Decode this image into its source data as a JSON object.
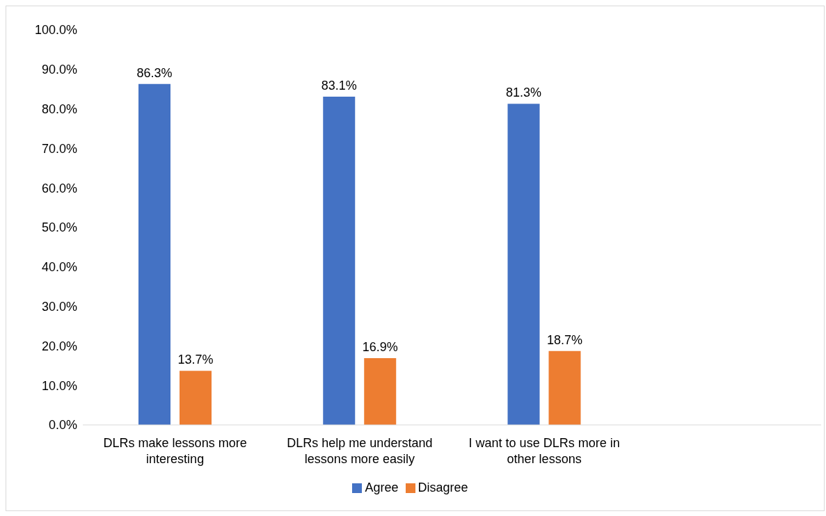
{
  "chart_data": {
    "type": "bar",
    "categories": [
      "DLRs make lessons more interesting",
      "DLRs help me understand lessons more easily",
      "I want to use DLRs more in other lessons",
      null
    ],
    "series": [
      {
        "name": "Agree",
        "color": "#4472c4",
        "values": [
          86.3,
          83.1,
          81.3,
          null
        ],
        "value_labels": [
          "86.3%",
          "83.1%",
          "81.3%",
          null
        ]
      },
      {
        "name": "Disagree",
        "color": "#ed7d31",
        "values": [
          13.7,
          16.9,
          18.7,
          null
        ],
        "value_labels": [
          "13.7%",
          "16.9%",
          "18.7%",
          null
        ]
      }
    ],
    "ylim": [
      0,
      100
    ],
    "yticks": [
      {
        "value": 0,
        "label": "0.0%"
      },
      {
        "value": 10,
        "label": "10.0%"
      },
      {
        "value": 20,
        "label": "20.0%"
      },
      {
        "value": 30,
        "label": "30.0%"
      },
      {
        "value": 40,
        "label": "40.0%"
      },
      {
        "value": 50,
        "label": "50.0%"
      },
      {
        "value": 60,
        "label": "60.0%"
      },
      {
        "value": 70,
        "label": "70.0%"
      },
      {
        "value": 80,
        "label": "80.0%"
      },
      {
        "value": 90,
        "label": "90.0%"
      },
      {
        "value": 100,
        "label": "100.0%"
      }
    ],
    "legend": "bottom"
  }
}
